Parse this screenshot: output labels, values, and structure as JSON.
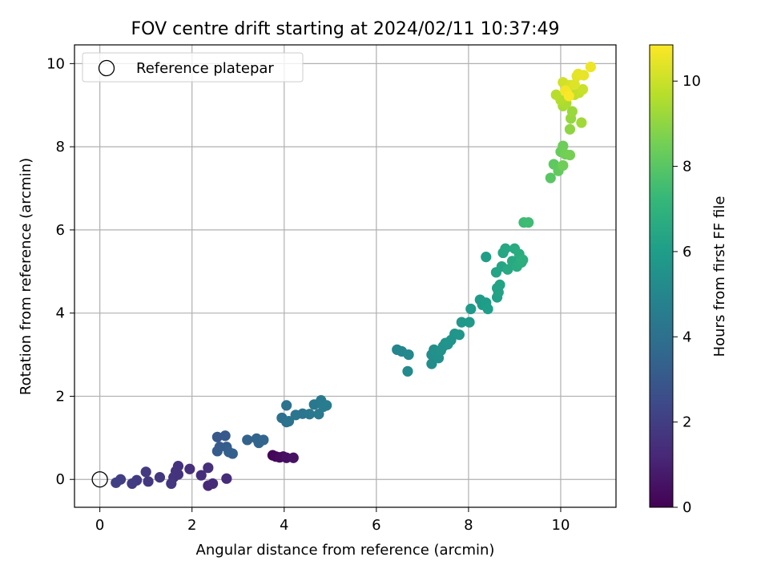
{
  "chart_data": {
    "type": "scatter",
    "title": "FOV centre drift starting at 2024/02/11 10:37:49",
    "xlabel": "Angular distance from reference (arcmin)",
    "ylabel": "Rotation from reference (arcmin)",
    "xlim": [
      -0.55,
      11.2
    ],
    "ylim": [
      -0.67,
      10.45
    ],
    "xticks": [
      0,
      2,
      4,
      6,
      8,
      10
    ],
    "yticks": [
      0,
      2,
      4,
      6,
      8,
      10
    ],
    "grid": true,
    "legend": {
      "placement": "top-left",
      "entries": [
        {
          "label": "Reference platepar",
          "marker": "open-circle"
        }
      ]
    },
    "reference_point": {
      "x": 0,
      "y": 0
    },
    "colorbar": {
      "label": "Hours from first FF file",
      "range": [
        0,
        10.85
      ],
      "ticks": [
        0,
        2,
        4,
        6,
        8,
        10
      ],
      "colormap": "viridis",
      "colors": [
        "#440154",
        "#482878",
        "#3e4989",
        "#31688e",
        "#26828e",
        "#1f9e89",
        "#35b779",
        "#6ece58",
        "#b5de2b",
        "#fde725"
      ]
    },
    "series": [
      {
        "points": [
          {
            "x": 3.75,
            "y": 0.58,
            "c": 0.1
          },
          {
            "x": 3.82,
            "y": 0.55,
            "c": 0.2
          },
          {
            "x": 3.9,
            "y": 0.53,
            "c": 0.3
          },
          {
            "x": 3.98,
            "y": 0.55,
            "c": 0.35
          },
          {
            "x": 4.05,
            "y": 0.52,
            "c": 0.45
          },
          {
            "x": 4.2,
            "y": 0.52,
            "c": 0.55
          },
          {
            "x": 2.35,
            "y": -0.15,
            "c": 1.2
          },
          {
            "x": 2.45,
            "y": -0.1,
            "c": 1.3
          },
          {
            "x": 2.75,
            "y": 0.02,
            "c": 1.35
          },
          {
            "x": 2.2,
            "y": 0.1,
            "c": 1.4
          },
          {
            "x": 2.35,
            "y": 0.28,
            "c": 1.45
          },
          {
            "x": 1.95,
            "y": 0.25,
            "c": 1.5
          },
          {
            "x": 1.7,
            "y": 0.32,
            "c": 1.55
          },
          {
            "x": 1.65,
            "y": 0.2,
            "c": 1.6
          },
          {
            "x": 1.6,
            "y": 0.05,
            "c": 1.65
          },
          {
            "x": 1.55,
            "y": -0.1,
            "c": 1.7
          },
          {
            "x": 1.3,
            "y": 0.05,
            "c": 1.75
          },
          {
            "x": 1.05,
            "y": -0.05,
            "c": 1.8
          },
          {
            "x": 1.0,
            "y": 0.18,
            "c": 1.85
          },
          {
            "x": 0.8,
            "y": -0.02,
            "c": 1.9
          },
          {
            "x": 0.7,
            "y": -0.1,
            "c": 1.95
          },
          {
            "x": 0.45,
            "y": 0.0,
            "c": 2.0
          },
          {
            "x": 0.35,
            "y": -0.08,
            "c": 2.05
          },
          {
            "x": 1.7,
            "y": 0.12,
            "c": 1.6
          },
          {
            "x": 2.55,
            "y": 1.02,
            "c": 3.0
          },
          {
            "x": 2.72,
            "y": 1.05,
            "c": 3.05
          },
          {
            "x": 2.6,
            "y": 0.78,
            "c": 3.1
          },
          {
            "x": 2.55,
            "y": 0.68,
            "c": 3.15
          },
          {
            "x": 2.75,
            "y": 0.78,
            "c": 3.2
          },
          {
            "x": 2.8,
            "y": 0.66,
            "c": 3.25
          },
          {
            "x": 2.88,
            "y": 0.62,
            "c": 3.3
          },
          {
            "x": 3.2,
            "y": 0.95,
            "c": 3.4
          },
          {
            "x": 3.4,
            "y": 0.98,
            "c": 3.45
          },
          {
            "x": 3.45,
            "y": 0.88,
            "c": 3.5
          },
          {
            "x": 3.55,
            "y": 0.95,
            "c": 3.55
          },
          {
            "x": 3.95,
            "y": 1.48,
            "c": 4.0
          },
          {
            "x": 4.05,
            "y": 1.38,
            "c": 4.05
          },
          {
            "x": 4.05,
            "y": 1.78,
            "c": 4.1
          },
          {
            "x": 4.1,
            "y": 1.4,
            "c": 4.15
          },
          {
            "x": 4.25,
            "y": 1.55,
            "c": 4.2
          },
          {
            "x": 4.4,
            "y": 1.58,
            "c": 4.25
          },
          {
            "x": 4.55,
            "y": 1.57,
            "c": 4.3
          },
          {
            "x": 4.65,
            "y": 1.8,
            "c": 4.35
          },
          {
            "x": 4.75,
            "y": 1.57,
            "c": 4.4
          },
          {
            "x": 4.8,
            "y": 1.9,
            "c": 4.45
          },
          {
            "x": 4.85,
            "y": 1.75,
            "c": 4.5
          },
          {
            "x": 4.92,
            "y": 1.78,
            "c": 4.55
          },
          {
            "x": 6.45,
            "y": 3.12,
            "c": 5.0
          },
          {
            "x": 6.55,
            "y": 3.08,
            "c": 5.05
          },
          {
            "x": 6.7,
            "y": 3.0,
            "c": 5.1
          },
          {
            "x": 6.68,
            "y": 2.6,
            "c": 5.15
          },
          {
            "x": 7.2,
            "y": 2.78,
            "c": 5.3
          },
          {
            "x": 7.2,
            "y": 3.0,
            "c": 5.35
          },
          {
            "x": 7.25,
            "y": 3.12,
            "c": 5.4
          },
          {
            "x": 7.3,
            "y": 3.05,
            "c": 5.42
          },
          {
            "x": 7.35,
            "y": 2.92,
            "c": 5.45
          },
          {
            "x": 7.4,
            "y": 3.1,
            "c": 5.5
          },
          {
            "x": 7.45,
            "y": 3.2,
            "c": 5.52
          },
          {
            "x": 7.5,
            "y": 3.28,
            "c": 5.55
          },
          {
            "x": 7.55,
            "y": 3.25,
            "c": 5.58
          },
          {
            "x": 7.62,
            "y": 3.35,
            "c": 5.6
          },
          {
            "x": 7.7,
            "y": 3.5,
            "c": 5.65
          },
          {
            "x": 7.8,
            "y": 3.48,
            "c": 5.7
          },
          {
            "x": 7.85,
            "y": 3.78,
            "c": 5.75
          },
          {
            "x": 8.02,
            "y": 3.78,
            "c": 5.8
          },
          {
            "x": 8.05,
            "y": 4.1,
            "c": 5.85
          },
          {
            "x": 8.25,
            "y": 4.32,
            "c": 5.9
          },
          {
            "x": 8.3,
            "y": 4.2,
            "c": 5.95
          },
          {
            "x": 8.38,
            "y": 4.25,
            "c": 6.0
          },
          {
            "x": 8.42,
            "y": 4.1,
            "c": 6.05
          },
          {
            "x": 8.38,
            "y": 5.35,
            "c": 6.1
          },
          {
            "x": 8.62,
            "y": 4.38,
            "c": 6.15
          },
          {
            "x": 8.62,
            "y": 4.6,
            "c": 6.2
          },
          {
            "x": 8.65,
            "y": 4.5,
            "c": 6.22
          },
          {
            "x": 8.68,
            "y": 4.68,
            "c": 6.25
          },
          {
            "x": 8.6,
            "y": 4.98,
            "c": 6.3
          },
          {
            "x": 8.72,
            "y": 5.12,
            "c": 6.35
          },
          {
            "x": 8.75,
            "y": 5.45,
            "c": 6.4
          },
          {
            "x": 8.8,
            "y": 5.55,
            "c": 6.45
          },
          {
            "x": 8.85,
            "y": 5.05,
            "c": 6.5
          },
          {
            "x": 8.95,
            "y": 5.25,
            "c": 6.55
          },
          {
            "x": 9.0,
            "y": 5.55,
            "c": 6.6
          },
          {
            "x": 9.05,
            "y": 5.12,
            "c": 6.65
          },
          {
            "x": 9.1,
            "y": 5.42,
            "c": 6.7
          },
          {
            "x": 9.15,
            "y": 5.22,
            "c": 6.75
          },
          {
            "x": 9.18,
            "y": 5.28,
            "c": 6.8
          },
          {
            "x": 9.2,
            "y": 6.18,
            "c": 7.4
          },
          {
            "x": 9.3,
            "y": 6.18,
            "c": 7.45
          },
          {
            "x": 9.78,
            "y": 7.25,
            "c": 8.0
          },
          {
            "x": 9.85,
            "y": 7.58,
            "c": 8.1
          },
          {
            "x": 9.95,
            "y": 7.42,
            "c": 8.2
          },
          {
            "x": 10.0,
            "y": 7.88,
            "c": 8.3
          },
          {
            "x": 10.05,
            "y": 8.02,
            "c": 8.4
          },
          {
            "x": 10.05,
            "y": 7.55,
            "c": 8.45
          },
          {
            "x": 10.1,
            "y": 7.82,
            "c": 8.5
          },
          {
            "x": 10.2,
            "y": 7.8,
            "c": 8.55
          },
          {
            "x": 10.2,
            "y": 8.42,
            "c": 9.0
          },
          {
            "x": 10.22,
            "y": 8.68,
            "c": 9.1
          },
          {
            "x": 10.25,
            "y": 8.85,
            "c": 9.2
          },
          {
            "x": 10.45,
            "y": 8.58,
            "c": 9.3
          },
          {
            "x": 10.05,
            "y": 8.98,
            "c": 9.4
          },
          {
            "x": 10.12,
            "y": 9.05,
            "c": 9.5
          },
          {
            "x": 10.0,
            "y": 9.12,
            "c": 9.6
          },
          {
            "x": 9.9,
            "y": 9.25,
            "c": 9.7
          },
          {
            "x": 10.3,
            "y": 9.25,
            "c": 9.8
          },
          {
            "x": 10.4,
            "y": 9.3,
            "c": 9.9
          },
          {
            "x": 10.48,
            "y": 9.38,
            "c": 10.0
          },
          {
            "x": 10.05,
            "y": 9.55,
            "c": 10.1
          },
          {
            "x": 10.2,
            "y": 9.48,
            "c": 10.2
          },
          {
            "x": 10.3,
            "y": 9.5,
            "c": 10.3
          },
          {
            "x": 10.35,
            "y": 9.7,
            "c": 10.4
          },
          {
            "x": 10.38,
            "y": 9.75,
            "c": 10.45
          },
          {
            "x": 10.5,
            "y": 9.72,
            "c": 10.5
          },
          {
            "x": 10.65,
            "y": 9.92,
            "c": 10.6
          },
          {
            "x": 10.1,
            "y": 9.35,
            "c": 10.7
          },
          {
            "x": 10.18,
            "y": 9.22,
            "c": 10.8
          }
        ]
      }
    ]
  }
}
